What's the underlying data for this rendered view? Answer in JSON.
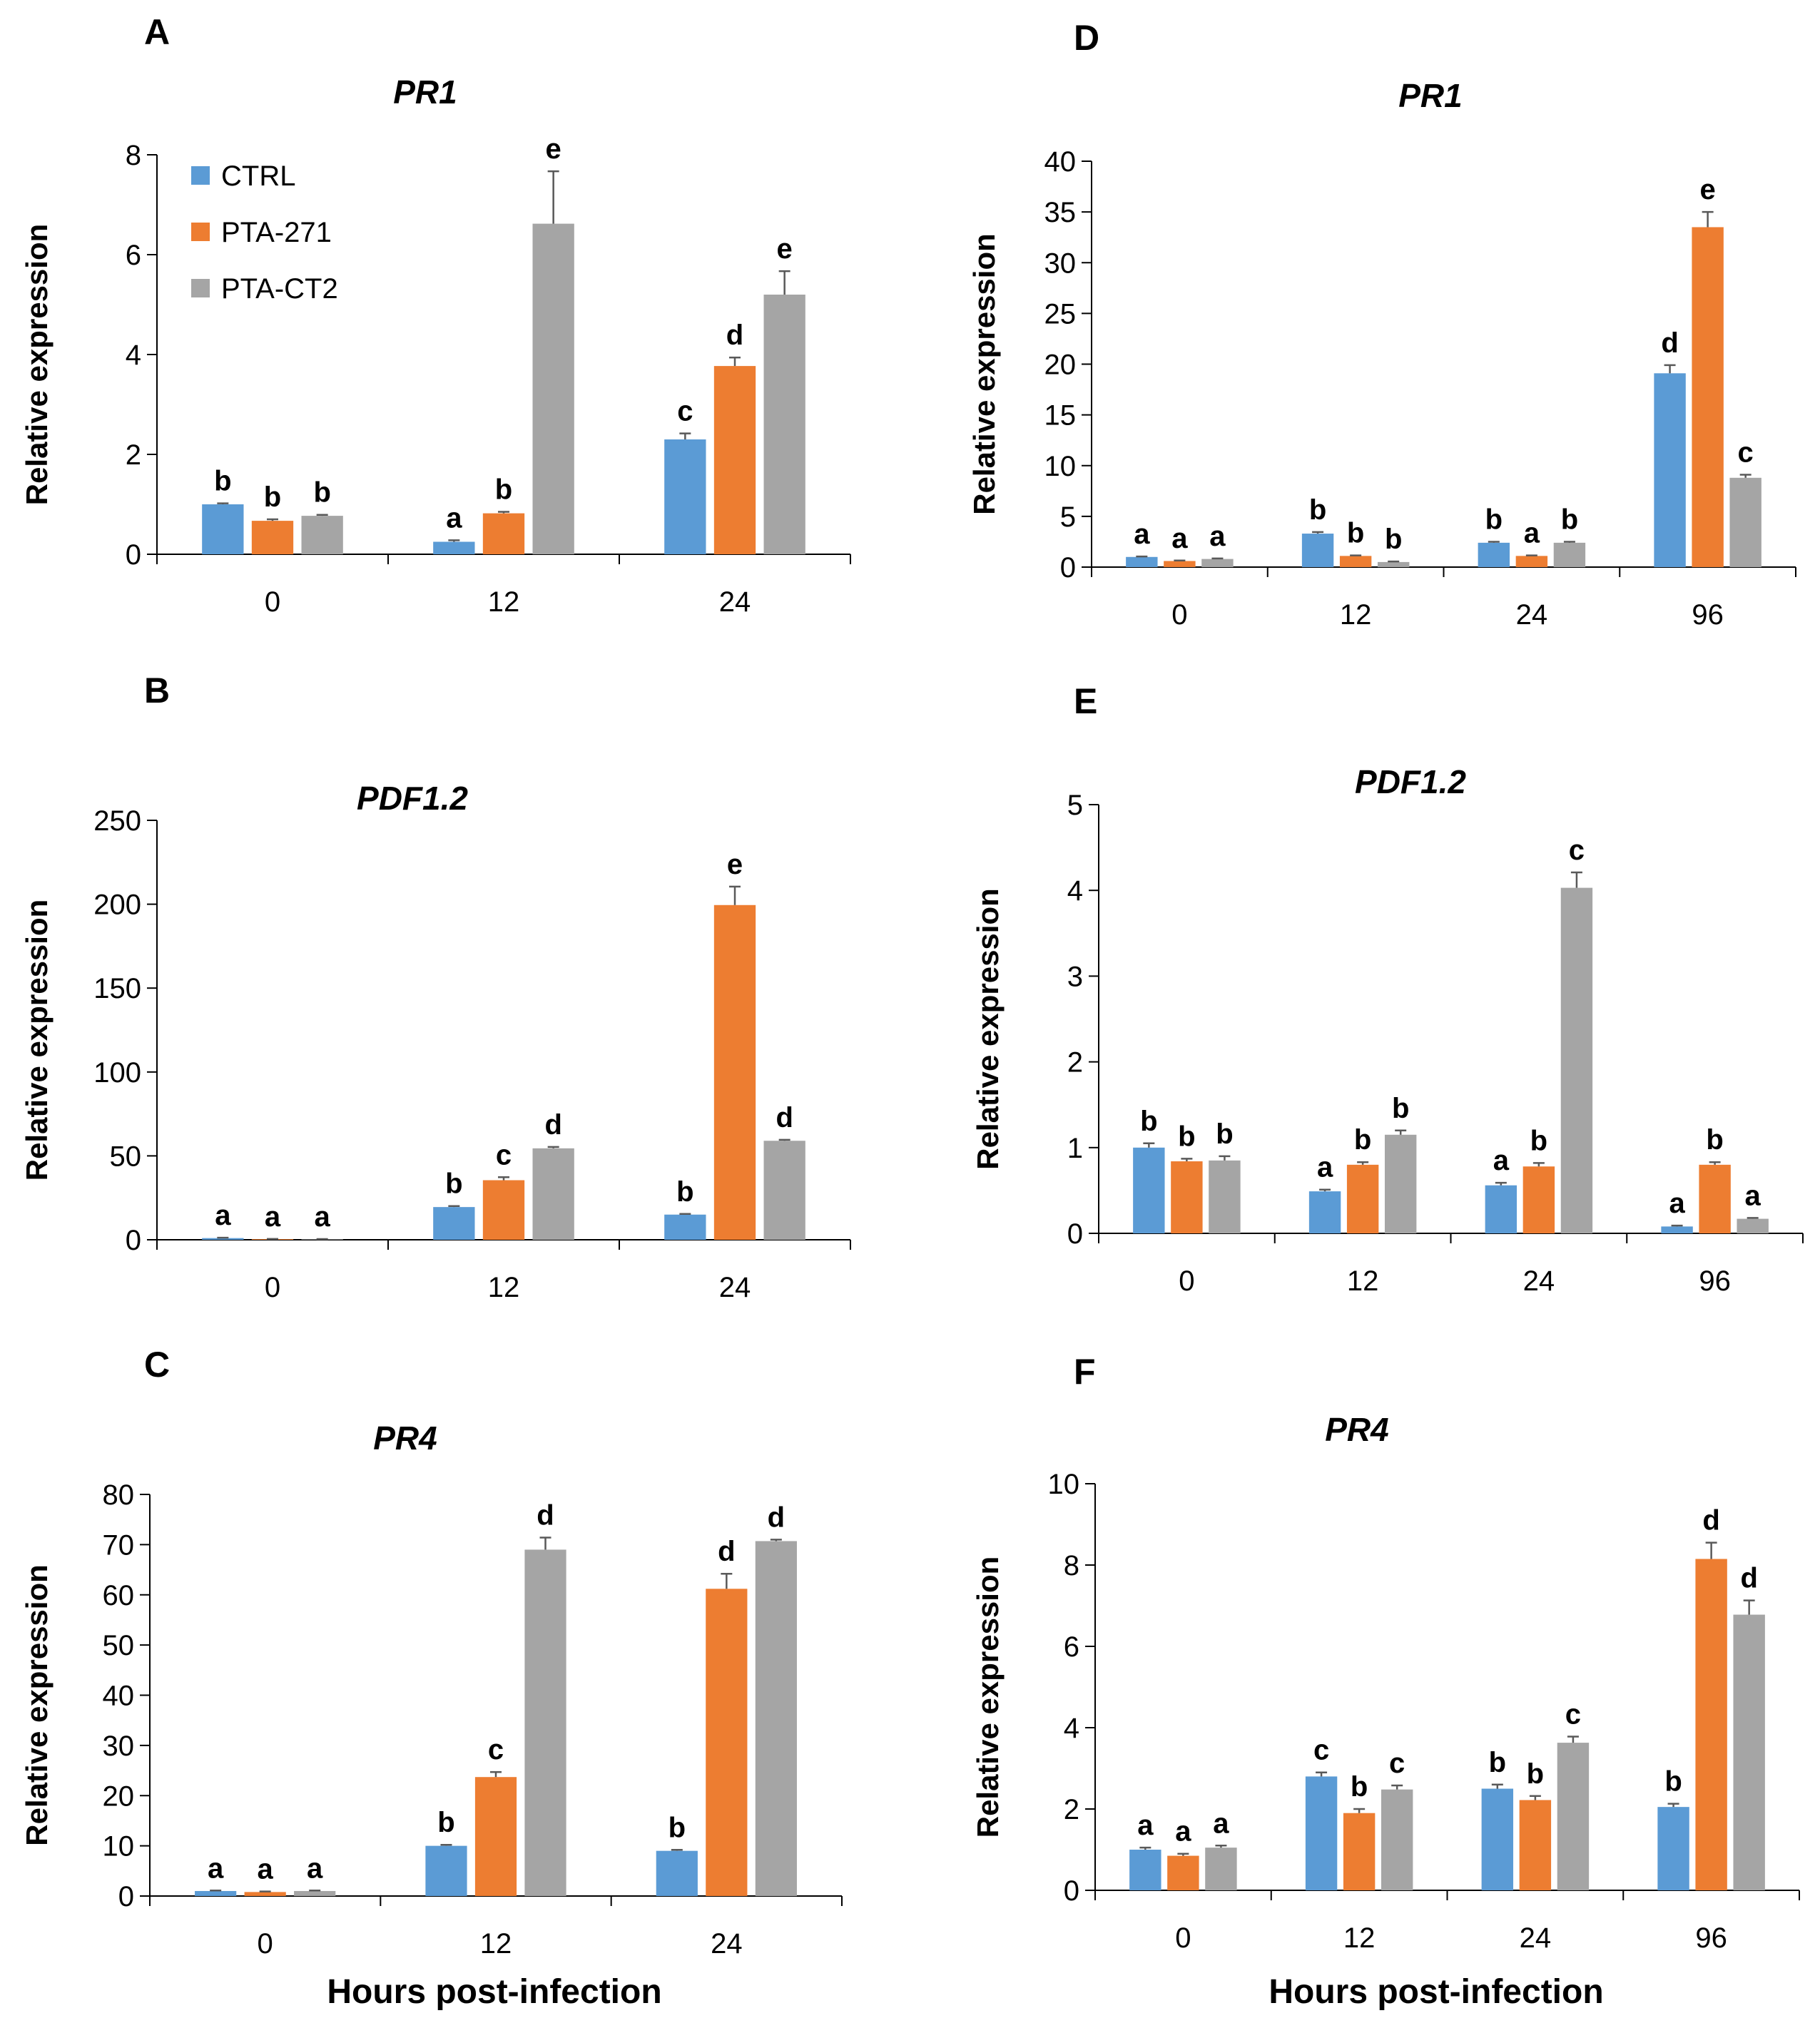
{
  "colors": {
    "CTRL": "#5b9bd5",
    "PTA-271": "#ed7d31",
    "PTA-CT2": "#a5a5a5",
    "axis": "#000000",
    "error": "#595959"
  },
  "legend": [
    "CTRL",
    "PTA-271",
    "PTA-CT2"
  ],
  "x_axis_title": "Hours post-infection",
  "chart_data": [
    {
      "panel": "A",
      "type": "bar",
      "title": "PR1",
      "ylabel": "Relative expression",
      "ylim": [
        0,
        8
      ],
      "yticks": [
        0,
        2,
        4,
        6,
        8
      ],
      "categories": [
        "0",
        "12",
        "24"
      ],
      "series": [
        {
          "name": "CTRL",
          "values": [
            1.0,
            0.25,
            2.3
          ],
          "errors": [
            0.02,
            0.03,
            0.12
          ],
          "letters": [
            "b",
            "a",
            "c"
          ]
        },
        {
          "name": "PTA-271",
          "values": [
            0.67,
            0.82,
            3.77
          ],
          "errors": [
            0.03,
            0.03,
            0.17
          ],
          "letters": [
            "b",
            "b",
            "d"
          ]
        },
        {
          "name": "PTA-CT2",
          "values": [
            0.77,
            6.62,
            5.2
          ],
          "errors": [
            0.02,
            1.05,
            0.47
          ],
          "letters": [
            "b",
            "e",
            "e"
          ]
        }
      ]
    },
    {
      "panel": "B",
      "type": "bar",
      "title": "PDF1.2",
      "ylabel": "Relative expression",
      "ylim": [
        0,
        250
      ],
      "yticks": [
        0,
        50,
        100,
        150,
        200,
        250
      ],
      "categories": [
        "0",
        "12",
        "24"
      ],
      "series": [
        {
          "name": "CTRL",
          "values": [
            1.0,
            19.5,
            15.0
          ],
          "errors": [
            0.2,
            0.6,
            0.4
          ],
          "letters": [
            "a",
            "b",
            "b"
          ]
        },
        {
          "name": "PTA-271",
          "values": [
            0.4,
            35.5,
            199.5
          ],
          "errors": [
            0.1,
            1.8,
            11.0
          ],
          "letters": [
            "a",
            "c",
            "e"
          ]
        },
        {
          "name": "PTA-CT2",
          "values": [
            0.3,
            54.5,
            59.0
          ],
          "errors": [
            0.1,
            0.8,
            0.6
          ],
          "letters": [
            "a",
            "d",
            "d"
          ]
        }
      ]
    },
    {
      "panel": "C",
      "type": "bar",
      "title": "PR4",
      "ylabel": "Relative expression",
      "ylim": [
        0,
        80
      ],
      "yticks": [
        0,
        10,
        20,
        30,
        40,
        50,
        60,
        70,
        80
      ],
      "categories": [
        "0",
        "12",
        "24"
      ],
      "series": [
        {
          "name": "CTRL",
          "values": [
            1.0,
            10.0,
            9.0
          ],
          "errors": [
            0.1,
            0.2,
            0.2
          ],
          "letters": [
            "a",
            "b",
            "b"
          ]
        },
        {
          "name": "PTA-271",
          "values": [
            0.8,
            23.7,
            61.2
          ],
          "errors": [
            0.1,
            1.0,
            3.0
          ],
          "letters": [
            "a",
            "c",
            "d"
          ]
        },
        {
          "name": "PTA-CT2",
          "values": [
            1.0,
            69.0,
            70.7
          ],
          "errors": [
            0.1,
            2.4,
            0.3
          ],
          "letters": [
            "a",
            "d",
            "d"
          ]
        }
      ]
    },
    {
      "panel": "D",
      "type": "bar",
      "title": "PR1",
      "ylabel": "Relative expression",
      "ylim": [
        0,
        40
      ],
      "yticks": [
        0,
        5,
        10,
        15,
        20,
        25,
        30,
        35,
        40
      ],
      "categories": [
        "0",
        "12",
        "24",
        "96"
      ],
      "series": [
        {
          "name": "CTRL",
          "values": [
            1.0,
            3.3,
            2.4,
            19.1
          ],
          "errors": [
            0.05,
            0.15,
            0.1,
            0.8
          ],
          "letters": [
            "a",
            "b",
            "b",
            "d"
          ]
        },
        {
          "name": "PTA-271",
          "values": [
            0.6,
            1.1,
            1.1,
            33.5
          ],
          "errors": [
            0.05,
            0.05,
            0.05,
            1.5
          ],
          "letters": [
            "a",
            "b",
            "a",
            "e"
          ]
        },
        {
          "name": "PTA-CT2",
          "values": [
            0.8,
            0.5,
            2.4,
            8.8
          ],
          "errors": [
            0.05,
            0.05,
            0.1,
            0.3
          ],
          "letters": [
            "a",
            "b",
            "b",
            "c"
          ]
        }
      ]
    },
    {
      "panel": "E",
      "type": "bar",
      "title": "PDF1.2",
      "ylabel": "Relative expression",
      "ylim": [
        0,
        5
      ],
      "yticks": [
        0,
        1,
        2,
        3,
        4,
        5
      ],
      "categories": [
        "0",
        "12",
        "24",
        "96"
      ],
      "series": [
        {
          "name": "CTRL",
          "values": [
            1.0,
            0.49,
            0.56,
            0.08
          ],
          "errors": [
            0.05,
            0.02,
            0.03,
            0.01
          ],
          "letters": [
            "b",
            "a",
            "a",
            "a"
          ]
        },
        {
          "name": "PTA-271",
          "values": [
            0.84,
            0.8,
            0.78,
            0.8
          ],
          "errors": [
            0.03,
            0.03,
            0.04,
            0.03
          ],
          "letters": [
            "b",
            "b",
            "b",
            "b"
          ]
        },
        {
          "name": "PTA-CT2",
          "values": [
            0.85,
            1.15,
            4.03,
            0.17
          ],
          "errors": [
            0.05,
            0.05,
            0.18,
            0.01
          ],
          "letters": [
            "b",
            "b",
            "c",
            "a"
          ]
        }
      ]
    },
    {
      "panel": "F",
      "type": "bar",
      "title": "PR4",
      "ylabel": "Relative expression",
      "ylim": [
        0,
        10
      ],
      "yticks": [
        0,
        2,
        4,
        6,
        8,
        10
      ],
      "categories": [
        "0",
        "12",
        "24",
        "96"
      ],
      "series": [
        {
          "name": "CTRL",
          "values": [
            1.0,
            2.8,
            2.5,
            2.05
          ],
          "errors": [
            0.05,
            0.1,
            0.1,
            0.08
          ],
          "letters": [
            "a",
            "c",
            "b",
            "b"
          ]
        },
        {
          "name": "PTA-271",
          "values": [
            0.85,
            1.9,
            2.22,
            8.15
          ],
          "errors": [
            0.05,
            0.1,
            0.1,
            0.4
          ],
          "letters": [
            "a",
            "b",
            "b",
            "d"
          ]
        },
        {
          "name": "PTA-CT2",
          "values": [
            1.05,
            2.48,
            3.63,
            6.78
          ],
          "errors": [
            0.05,
            0.1,
            0.15,
            0.35
          ],
          "letters": [
            "a",
            "c",
            "c",
            "d"
          ]
        }
      ]
    }
  ]
}
